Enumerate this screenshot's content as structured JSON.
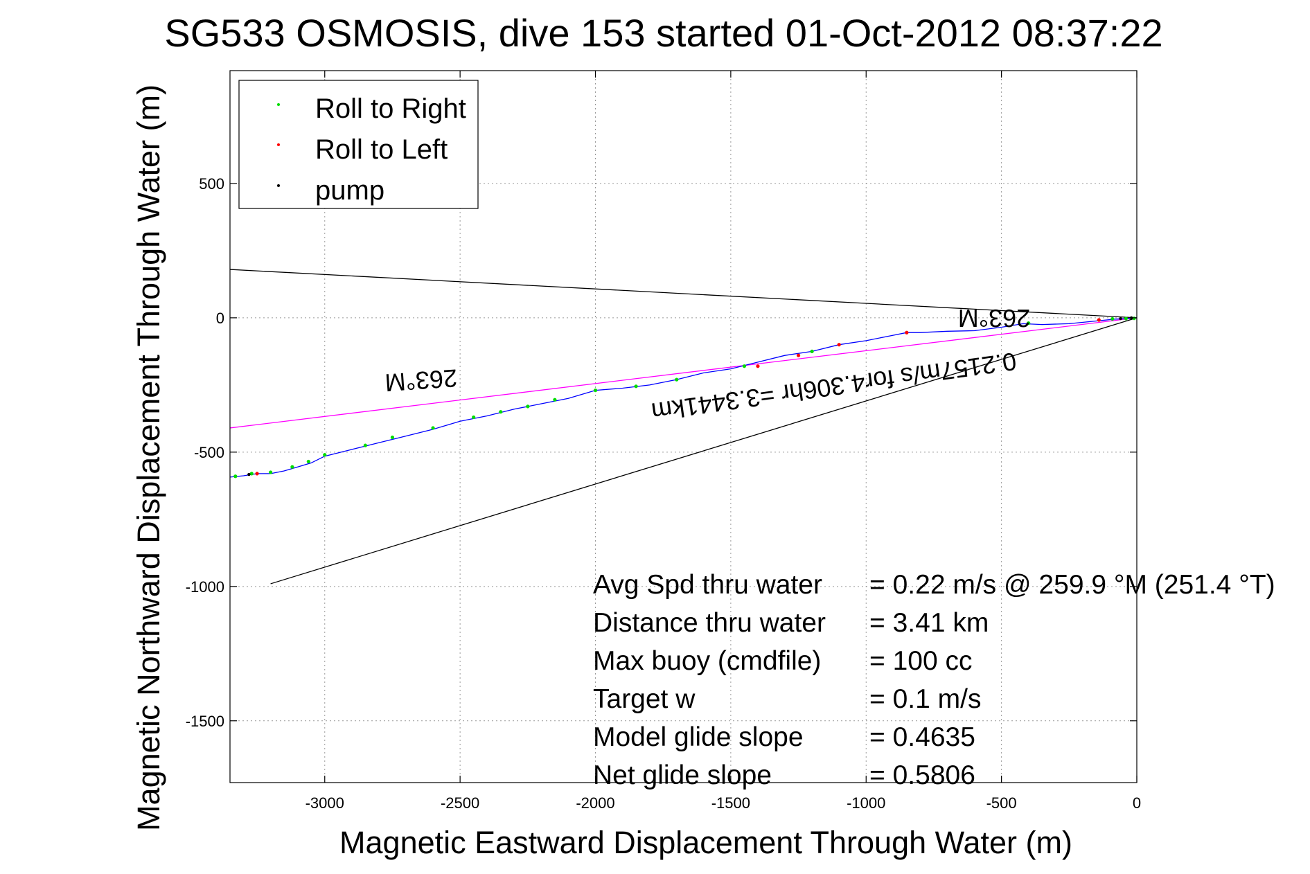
{
  "chart_data": {
    "type": "scatter",
    "title": "SG533 OSMOSIS, dive 153 started 01-Oct-2012 08:37:22",
    "xlabel": "Magnetic Eastward Displacement Through Water (m)",
    "ylabel": "Magnetic Northward Displacement Through Water (m)",
    "xlim": [
      -3350,
      0
    ],
    "ylim": [
      -1730,
      920
    ],
    "grid": true,
    "legend_position": "top-left",
    "x_ticks": [
      {
        "value": -3000,
        "label": "-3000"
      },
      {
        "value": -2500,
        "label": "-2500"
      },
      {
        "value": -2000,
        "label": "-2000"
      },
      {
        "value": -1500,
        "label": "-1500"
      },
      {
        "value": -1000,
        "label": "-1000"
      },
      {
        "value": -500,
        "label": "-500"
      },
      {
        "value": 0,
        "label": "0"
      }
    ],
    "y_ticks": [
      {
        "value": 500,
        "label": "500"
      },
      {
        "value": 0,
        "label": "0"
      },
      {
        "value": -500,
        "label": "-500"
      },
      {
        "value": -1000,
        "label": "-1000"
      },
      {
        "value": -1500,
        "label": "-1500"
      }
    ],
    "legend": [
      {
        "label": "Roll to Right",
        "color": "#00dd00"
      },
      {
        "label": "Roll to Left",
        "color": "#ff0000"
      },
      {
        "label": "pump",
        "color": "#000000"
      }
    ],
    "track": {
      "color": "#0000ff",
      "x": [
        0,
        -30,
        -80,
        -150,
        -250,
        -350,
        -420,
        -500,
        -600,
        -700,
        -800,
        -850,
        -900,
        -1000,
        -1100,
        -1200,
        -1300,
        -1400,
        -1500,
        -1600,
        -1700,
        -1800,
        -1900,
        -2000,
        -2100,
        -2200,
        -2300,
        -2400,
        -2500,
        -2600,
        -2700,
        -2800,
        -2900,
        -3000,
        -3050,
        -3100,
        -3150,
        -3200,
        -3250,
        -3300,
        -3350
      ],
      "y": [
        0,
        -2,
        -5,
        -12,
        -22,
        -25,
        -22,
        -35,
        -48,
        -50,
        -55,
        -55,
        -65,
        -85,
        -100,
        -125,
        -140,
        -165,
        -190,
        -205,
        -230,
        -250,
        -262,
        -270,
        -300,
        -320,
        -340,
        -365,
        -385,
        -415,
        -440,
        -465,
        -490,
        -515,
        -540,
        -555,
        -570,
        -580,
        -580,
        -588,
        -593
      ]
    },
    "roll_right_points": {
      "color": "#00dd00",
      "x": [
        -10,
        -40,
        -90,
        -400,
        -1200,
        -1450,
        -1700,
        -1850,
        -2000,
        -2150,
        -2250,
        -2350,
        -2450,
        -2600,
        -2750,
        -2850,
        -3000,
        -3060,
        -3120,
        -3200,
        -3270,
        -3330
      ],
      "y": [
        -2,
        -3,
        -4,
        -20,
        -125,
        -180,
        -230,
        -255,
        -270,
        -305,
        -330,
        -350,
        -370,
        -410,
        -445,
        -475,
        -510,
        -535,
        -555,
        -575,
        -580,
        -590
      ]
    },
    "roll_left_points": {
      "color": "#ff0000",
      "x": [
        -140,
        -850,
        -1100,
        -1250,
        -1400,
        -3250
      ],
      "y": [
        -8,
        -55,
        -100,
        -140,
        -180,
        -580
      ]
    },
    "pump_points": {
      "color": "#000000",
      "x": [
        -20,
        -60,
        -3280
      ],
      "y": [
        0,
        -3,
        -583
      ]
    },
    "reference_lines": [
      {
        "name": "black-upper",
        "color": "#000000",
        "x": [
          0,
          -3350
        ],
        "y": [
          0,
          180
        ]
      },
      {
        "name": "black-lower",
        "color": "#000000",
        "x": [
          0,
          -3200
        ],
        "y": [
          0,
          -990
        ]
      },
      {
        "name": "magenta",
        "color": "#ff00ff",
        "x": [
          0,
          -3350
        ],
        "y": [
          0,
          -410
        ]
      }
    ],
    "annotations": {
      "heading_near": "263°M",
      "heading_far": "263°M",
      "speed_line": "0.2157m/s for4.306hr =3.3441km"
    },
    "stats": [
      {
        "label": "Avg Spd thru water",
        "value": "=  0.22 m/s @ 259.9 °M (251.4 °T)"
      },
      {
        "label": "Distance thru water",
        "value": "=  3.41 km"
      },
      {
        "label": "Max buoy (cmdfile)",
        "value": "= 100 cc"
      },
      {
        "label": "Target w",
        "value": "= 0.1 m/s"
      },
      {
        "label": "Model glide slope",
        "value": "= 0.4635"
      },
      {
        "label": "Net glide slope",
        "value": "= 0.5806"
      }
    ]
  }
}
